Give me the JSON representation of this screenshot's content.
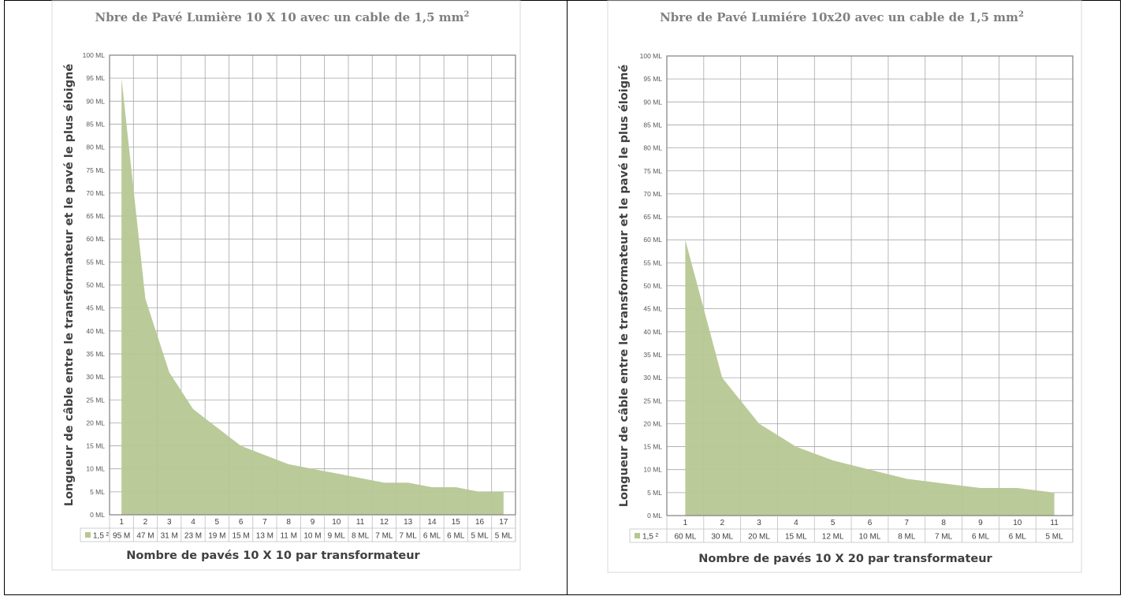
{
  "chart_data": [
    {
      "type": "area",
      "title": "Nbre de Pavé Lumière 10 X 10 avec un cable de 1,5 mm",
      "title_superscript": "2",
      "xlabel": "Nombre de pavés 10 X 10 par transformateur",
      "ylabel": "Longueur de câble entre le transformateur et le pavé le plus éloigné",
      "categories": [
        "1",
        "2",
        "3",
        "4",
        "5",
        "6",
        "7",
        "8",
        "9",
        "10",
        "11",
        "12",
        "13",
        "14",
        "15",
        "16",
        "17"
      ],
      "series": [
        {
          "name": "1,5 ²",
          "values": [
            95,
            47,
            31,
            23,
            19,
            15,
            13,
            11,
            10,
            9,
            8,
            7,
            7,
            6,
            6,
            5,
            5
          ],
          "table_labels": [
            "95 M",
            "47 M",
            "31 M",
            "23 M",
            "19 M",
            "15 M",
            "13 M",
            "11 M",
            "10 M",
            "9 ML",
            "8 ML",
            "7 ML",
            "7 ML",
            "6 ML",
            "6 ML",
            "5 ML",
            "5 ML"
          ]
        }
      ],
      "ylim": [
        0,
        100
      ],
      "ytick_step": 5,
      "ytick_labels": [
        "0 ML",
        "5 ML",
        "10 ML",
        "15 ML",
        "20 ML",
        "25 ML",
        "30 ML",
        "35 ML",
        "40 ML",
        "45 ML",
        "50 ML",
        "55 ML",
        "60 ML",
        "65 ML",
        "70 ML",
        "75 ML",
        "80 ML",
        "85 ML",
        "90 ML",
        "95 ML",
        "100 ML"
      ],
      "grid": true,
      "legend": "data-table",
      "color": "#b6c793"
    },
    {
      "type": "area",
      "title": "Nbre de Pavé Lumiére 10x20 avec un cable de 1,5 mm",
      "title_superscript": "2",
      "xlabel": "Nombre de pavés 10 X 20 par transformateur",
      "ylabel": "Longueur de câble entre le transformateur et le pavé le plus éloigné",
      "categories": [
        "1",
        "2",
        "3",
        "4",
        "5",
        "6",
        "7",
        "8",
        "9",
        "10",
        "11"
      ],
      "series": [
        {
          "name": "1,5 ²",
          "values": [
            60,
            30,
            20,
            15,
            12,
            10,
            8,
            7,
            6,
            6,
            5
          ],
          "table_labels": [
            "60 ML",
            "30 ML",
            "20 ML",
            "15 ML",
            "12 ML",
            "10 ML",
            "8 ML",
            "7 ML",
            "6 ML",
            "6 ML",
            "5 ML"
          ]
        }
      ],
      "ylim": [
        0,
        100
      ],
      "ytick_step": 5,
      "ytick_labels": [
        "0 ML",
        "5 ML",
        "10 ML",
        "15 ML",
        "20 ML",
        "25 ML",
        "30 ML",
        "35 ML",
        "40 ML",
        "45 ML",
        "50 ML",
        "55 ML",
        "60 ML",
        "65 ML",
        "70 ML",
        "75 ML",
        "80 ML",
        "85 ML",
        "90 ML",
        "95 ML",
        "100 ML"
      ],
      "grid": true,
      "legend": "data-table",
      "color": "#b6c793"
    }
  ]
}
